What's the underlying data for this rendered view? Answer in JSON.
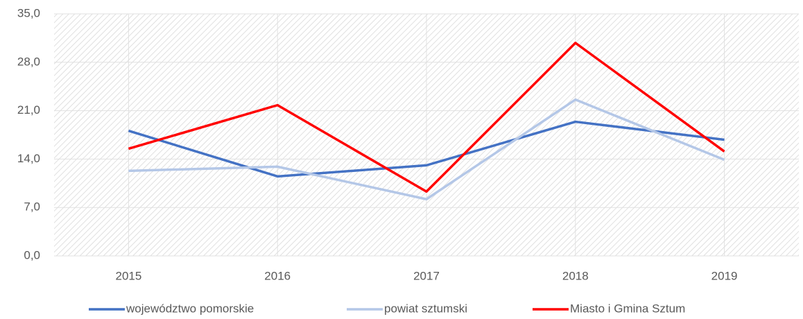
{
  "chart_data": {
    "type": "line",
    "categories": [
      "2015",
      "2016",
      "2017",
      "2018",
      "2019"
    ],
    "series": [
      {
        "name": "województwo pomorskie",
        "color": "#4472c4",
        "values": [
          18.1,
          11.5,
          13.1,
          19.4,
          16.8
        ]
      },
      {
        "name": "powiat sztumski",
        "color": "#b4c7e7",
        "values": [
          12.3,
          12.9,
          8.2,
          22.6,
          13.9
        ]
      },
      {
        "name": "Miasto i Gmina Sztum",
        "color": "#ff0000",
        "values": [
          15.5,
          21.8,
          9.3,
          30.8,
          15.1
        ]
      }
    ],
    "ylim": [
      0,
      35
    ],
    "yticks": [
      {
        "value": 0,
        "label": "0,0"
      },
      {
        "value": 7,
        "label": "7,0"
      },
      {
        "value": 14,
        "label": "14,0"
      },
      {
        "value": 21,
        "label": "21,0"
      },
      {
        "value": 28,
        "label": "28,0"
      },
      {
        "value": 35,
        "label": "35,0"
      }
    ],
    "grid": true,
    "legend": "bottom"
  }
}
